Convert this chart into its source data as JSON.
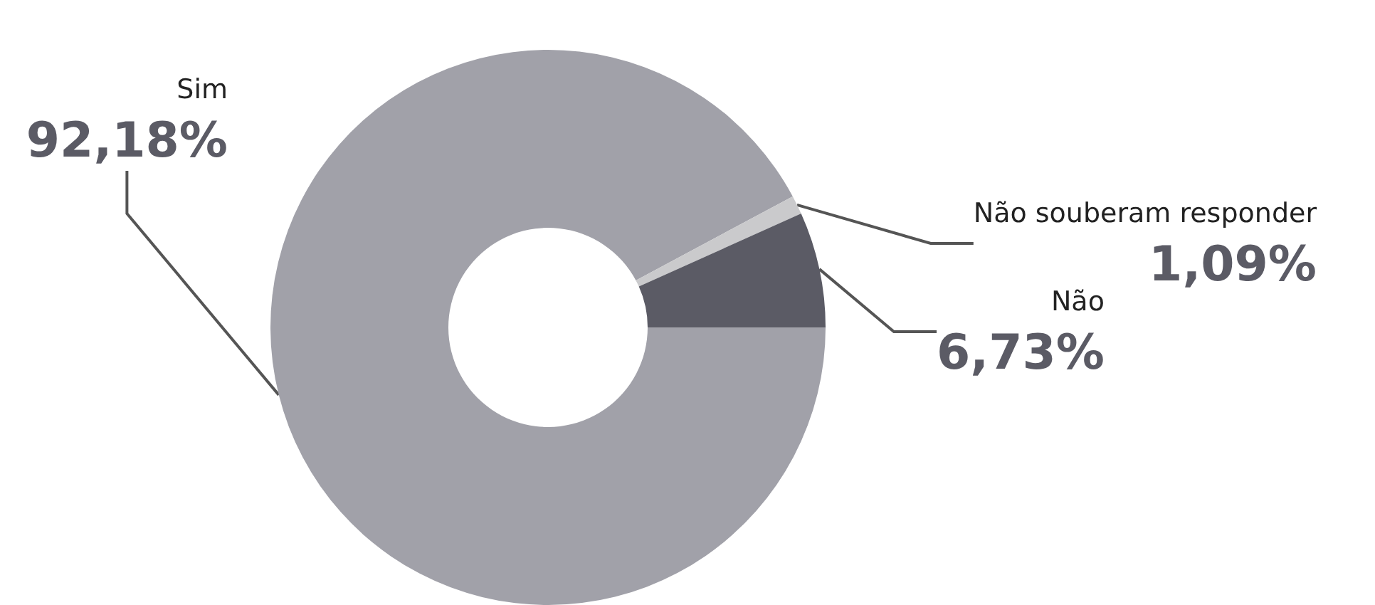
{
  "chart_data": {
    "type": "donut",
    "categories": [
      "Sim",
      "Não souberam responder",
      "Não"
    ],
    "values": [
      92.18,
      1.09,
      6.73
    ],
    "value_labels": [
      "92,18%",
      "1,09%",
      "6,73%"
    ],
    "colors": [
      "#a1a1a9",
      "#cacacc",
      "#5b5b65"
    ]
  }
}
